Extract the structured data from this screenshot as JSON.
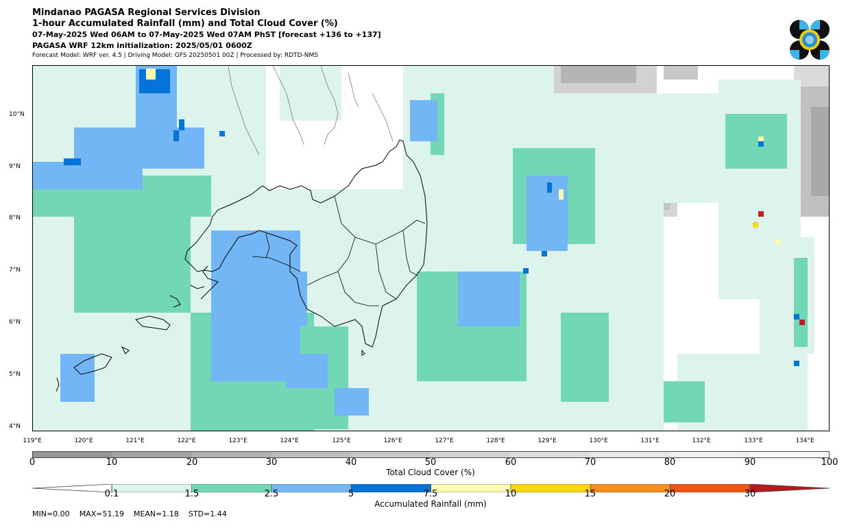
{
  "header": {
    "title": "Mindanao PAGASA Regional Services Division",
    "subtitle": "1-hour Accumulated Rainfall (mm) and Total Cloud Cover (%)",
    "valid_time": "07-May-2025 Wed 06AM to 07-May-2025 Wed 07AM PhST [forecast +136 to +137]",
    "init": "PAGASA WRF 12km initialization: 2025/05/01 0600Z",
    "model_info": "Forecast Model: WRF ver. 4.5 | Driving Model: GFS 20250501 00Z | Processed by: RDTD-NMS"
  },
  "logo": {
    "name": "PAGASA logo"
  },
  "map": {
    "lon_range": [
      119,
      134.5
    ],
    "lat_range": [
      3.9,
      10.95
    ],
    "lon_ticks": [
      "119°E",
      "120°E",
      "121°E",
      "122°E",
      "123°E",
      "124°E",
      "125°E",
      "126°E",
      "127°E",
      "128°E",
      "129°E",
      "130°E",
      "131°E",
      "132°E",
      "133°E",
      "134°E"
    ],
    "lat_ticks": [
      "10°N",
      "9°N",
      "8°N",
      "7°N",
      "6°N",
      "5°N",
      "4°N"
    ]
  },
  "cloud_cover": {
    "label": "Total Cloud Cover (%)",
    "ticks": [
      "0",
      "10",
      "20",
      "30",
      "40",
      "50",
      "60",
      "70",
      "80",
      "90",
      "100"
    ],
    "colors": [
      "#959595",
      "#a3a3a3",
      "#b0b0b0",
      "#bdbdbd",
      "#c9c9c9",
      "#d4d4d4",
      "#dedede",
      "#e7e7e7",
      "#f0f0f0",
      "#f8f8f8"
    ]
  },
  "rainfall": {
    "label": "Accumulated Rainfall (mm)",
    "ticks": [
      "0.1",
      "1.5",
      "2.5",
      "5",
      "7.5",
      "10",
      "15",
      "20",
      "30"
    ],
    "colors": [
      "#dcf4ec",
      "#72d7b4",
      "#72b6f6",
      "#0474da",
      "#fdfbb0",
      "#f9d80e",
      "#f78d1a",
      "#ee5511",
      "#c41b1b"
    ],
    "under_color": "#ffffff",
    "over_color": "#b8191b"
  },
  "stats": {
    "min": "MIN=0.00",
    "max": "MAX=51.19",
    "mean": "MEAN=1.18",
    "std": "STD=1.44"
  }
}
